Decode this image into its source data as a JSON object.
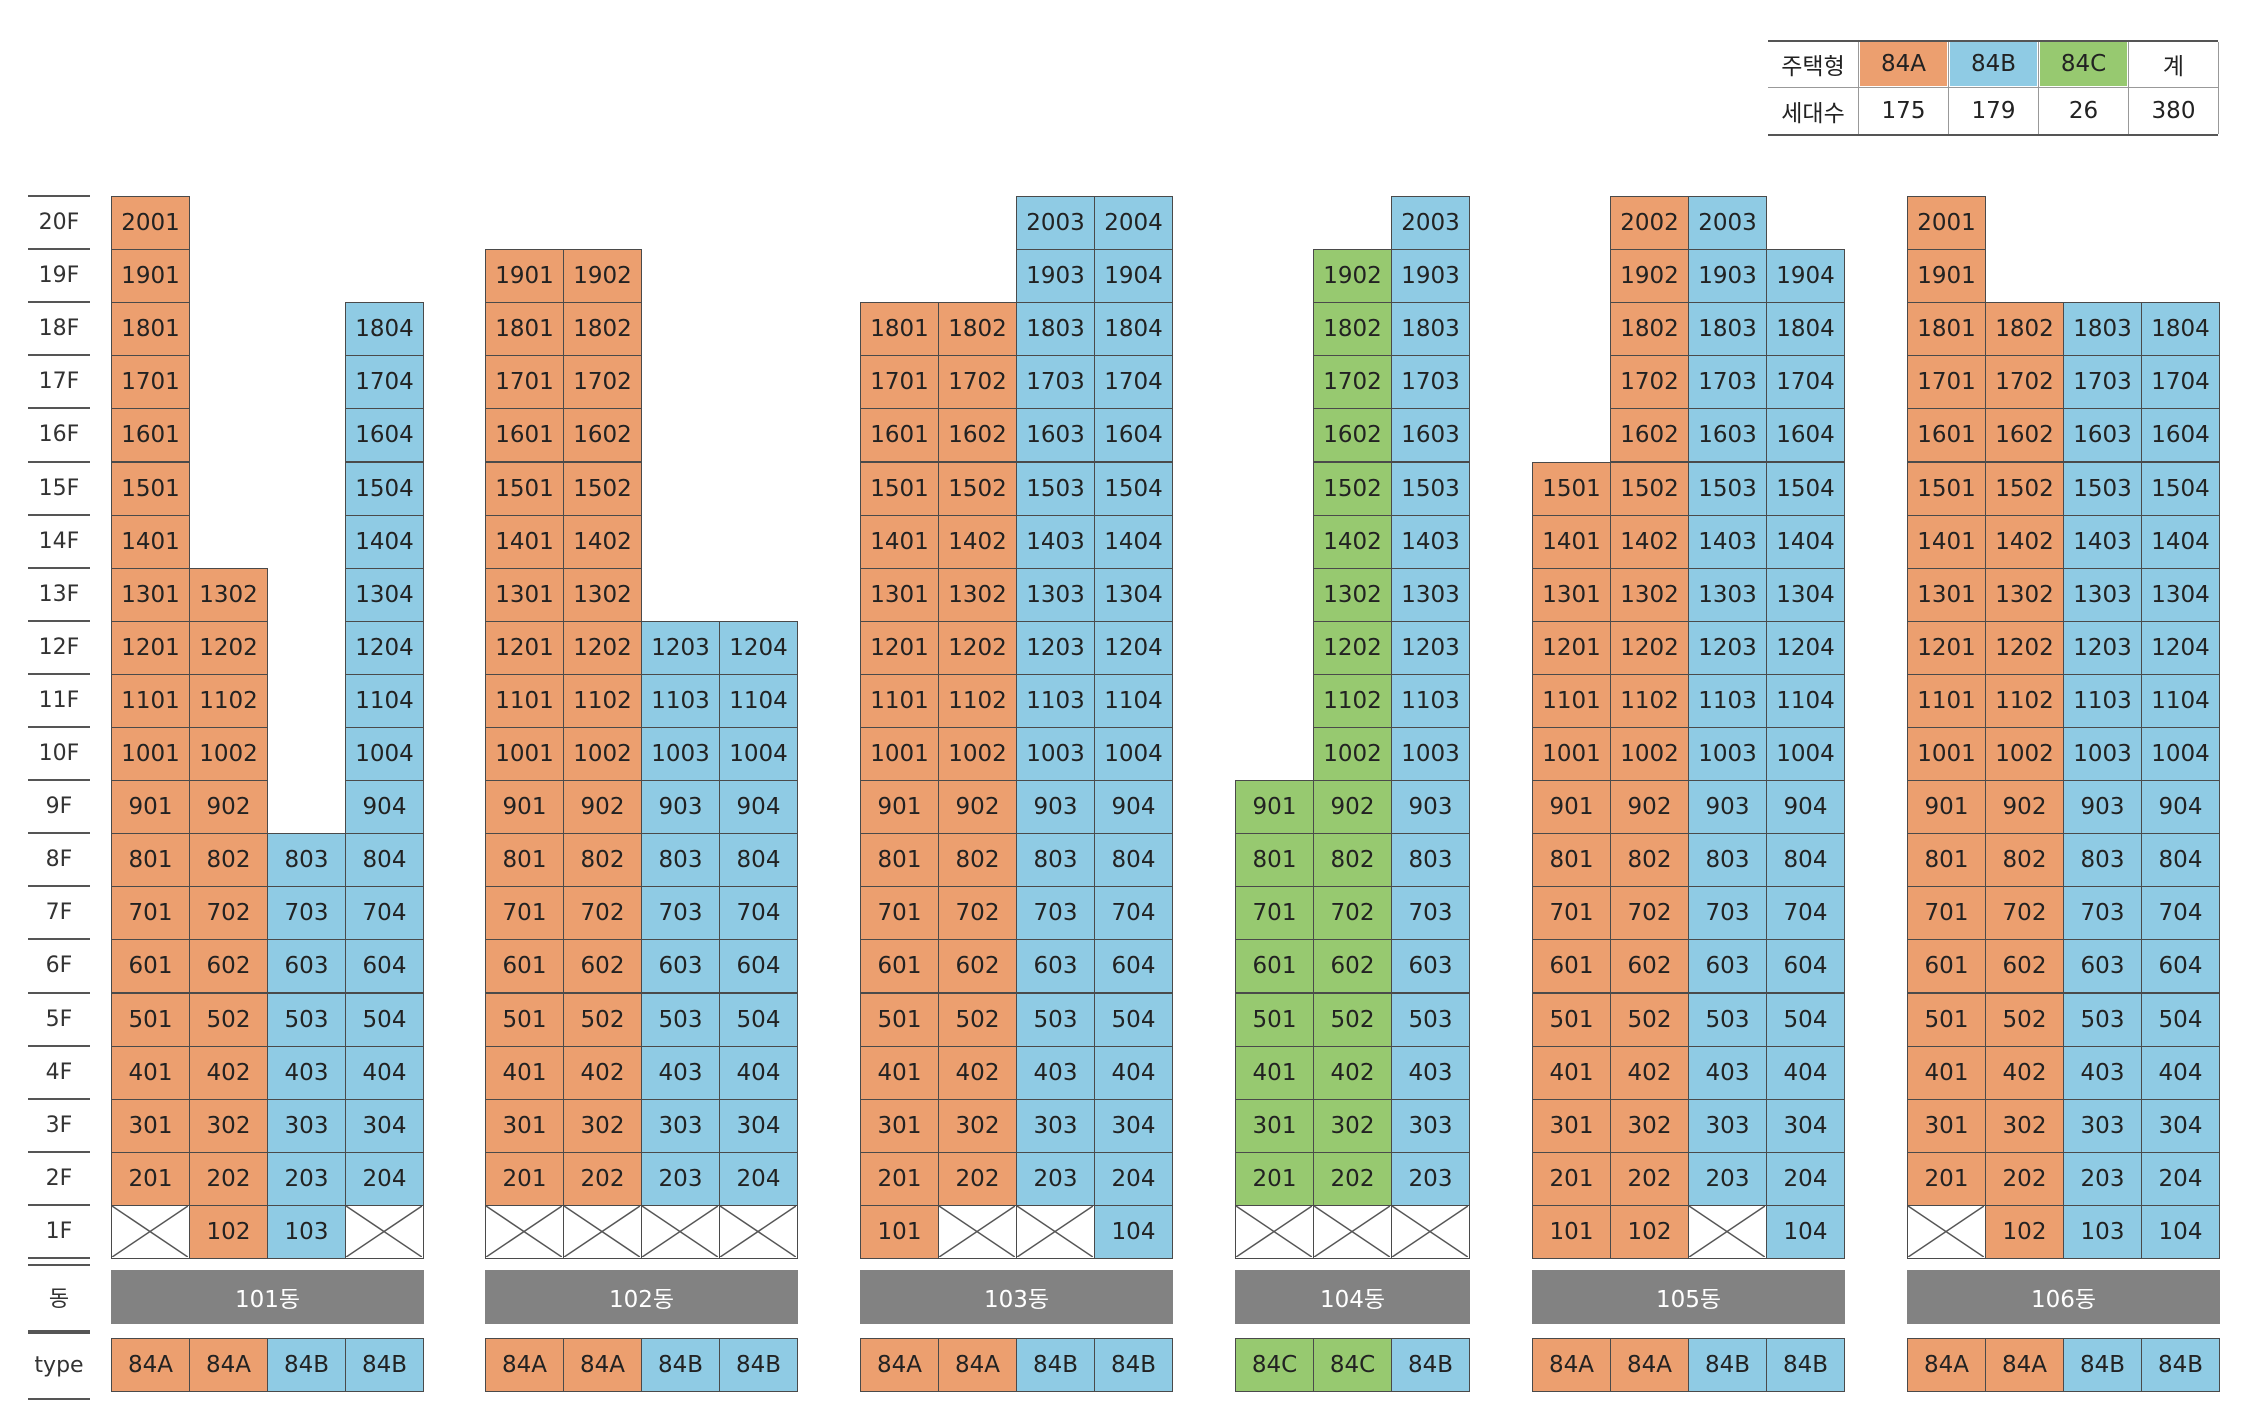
{
  "legend": {
    "header_label": "주택형",
    "count_label": "세대수",
    "types": [
      {
        "type": "84A",
        "count": "175"
      },
      {
        "type": "84B",
        "count": "179"
      },
      {
        "type": "84C",
        "count": "26"
      },
      {
        "type": "계",
        "count": "380"
      }
    ]
  },
  "colors": {
    "84A": "#ec9f6f",
    "84B": "#8fcbe4",
    "84C": "#97c970"
  },
  "floors": [
    "20F",
    "19F",
    "18F",
    "17F",
    "16F",
    "15F",
    "14F",
    "13F",
    "12F",
    "11F",
    "10F",
    "9F",
    "8F",
    "7F",
    "6F",
    "5F",
    "4F",
    "3F",
    "2F",
    "1F"
  ],
  "row_labels": {
    "building": "동",
    "type": "type"
  },
  "buildings": [
    {
      "name": "101동",
      "columns": [
        {
          "type": "84A",
          "top": 20,
          "empty_1f": true
        },
        {
          "type": "84A",
          "top": 13,
          "empty_1f": false
        },
        {
          "type": "84B",
          "top": 8,
          "empty_1f": false
        },
        {
          "type": "84B",
          "top": 18,
          "empty_1f": true
        }
      ]
    },
    {
      "name": "102동",
      "columns": [
        {
          "type": "84A",
          "top": 19,
          "empty_1f": true
        },
        {
          "type": "84A",
          "top": 19,
          "empty_1f": true
        },
        {
          "type": "84B",
          "top": 12,
          "empty_1f": true
        },
        {
          "type": "84B",
          "top": 12,
          "empty_1f": true
        }
      ]
    },
    {
      "name": "103동",
      "columns": [
        {
          "type": "84A",
          "top": 18,
          "empty_1f": false
        },
        {
          "type": "84A",
          "top": 18,
          "empty_1f": true
        },
        {
          "type": "84B",
          "top": 20,
          "empty_1f": true
        },
        {
          "type": "84B",
          "top": 20,
          "empty_1f": false
        }
      ]
    },
    {
      "name": "104동",
      "columns": [
        {
          "type": "84C",
          "top": 9,
          "empty_1f": true
        },
        {
          "type": "84C",
          "top": 19,
          "empty_1f": true
        },
        {
          "type": "84B",
          "top": 20,
          "empty_1f": true
        }
      ]
    },
    {
      "name": "105동",
      "columns": [
        {
          "type": "84A",
          "top": 15,
          "empty_1f": false
        },
        {
          "type": "84A",
          "top": 20,
          "empty_1f": false
        },
        {
          "type": "84B",
          "top": 20,
          "empty_1f": true
        },
        {
          "type": "84B",
          "top": 19,
          "empty_1f": false
        }
      ]
    },
    {
      "name": "106동",
      "columns": [
        {
          "type": "84A",
          "top": 20,
          "empty_1f": true
        },
        {
          "type": "84A",
          "top": 18,
          "empty_1f": false
        },
        {
          "type": "84B",
          "top": 18,
          "empty_1f": false
        },
        {
          "type": "84B",
          "top": 18,
          "empty_1f": false
        }
      ]
    }
  ]
}
